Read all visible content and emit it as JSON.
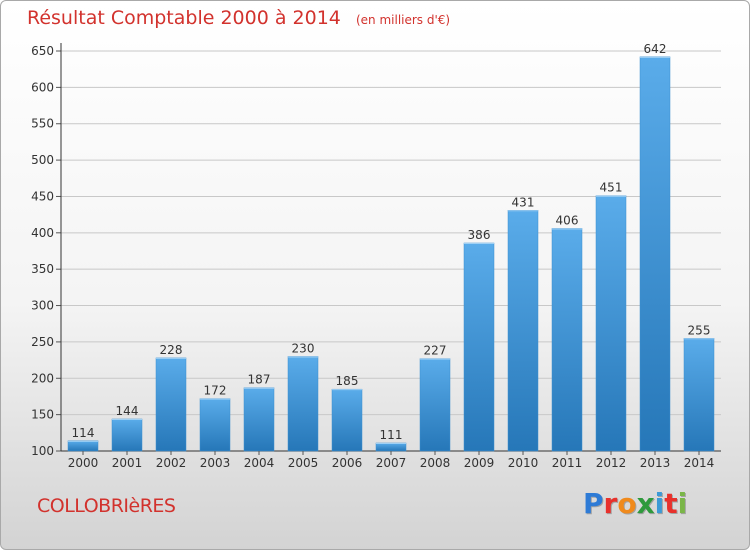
{
  "header": {
    "title": "Résultat Comptable 2000 à 2014",
    "unit_note": "(en milliers d'€)"
  },
  "footer": {
    "town": "COLLOBRIèRES",
    "logo": {
      "text": "Proxiti",
      "letter_colors": [
        "#2e7bd6",
        "#e8312c",
        "#f08a1c",
        "#2e9a3c",
        "#3c9ad6",
        "#e8312c",
        "#7ab648"
      ]
    }
  },
  "colors": {
    "bar_top": "#5aacea",
    "bar_bottom": "#2677b8",
    "text": "#333333",
    "accent": "#d2322d",
    "grid": "#c8c8c8"
  },
  "chart_data": {
    "type": "bar",
    "categories": [
      "2000",
      "2001",
      "2002",
      "2003",
      "2004",
      "2005",
      "2006",
      "2007",
      "2008",
      "2009",
      "2010",
      "2011",
      "2012",
      "2013",
      "2014"
    ],
    "values": [
      114,
      144,
      228,
      172,
      187,
      230,
      185,
      111,
      227,
      386,
      431,
      406,
      451,
      642,
      255
    ],
    "ylim": [
      100,
      650
    ],
    "yticks": [
      100,
      150,
      200,
      250,
      300,
      350,
      400,
      450,
      500,
      550,
      600,
      650
    ],
    "grid": true,
    "legend": "none"
  }
}
